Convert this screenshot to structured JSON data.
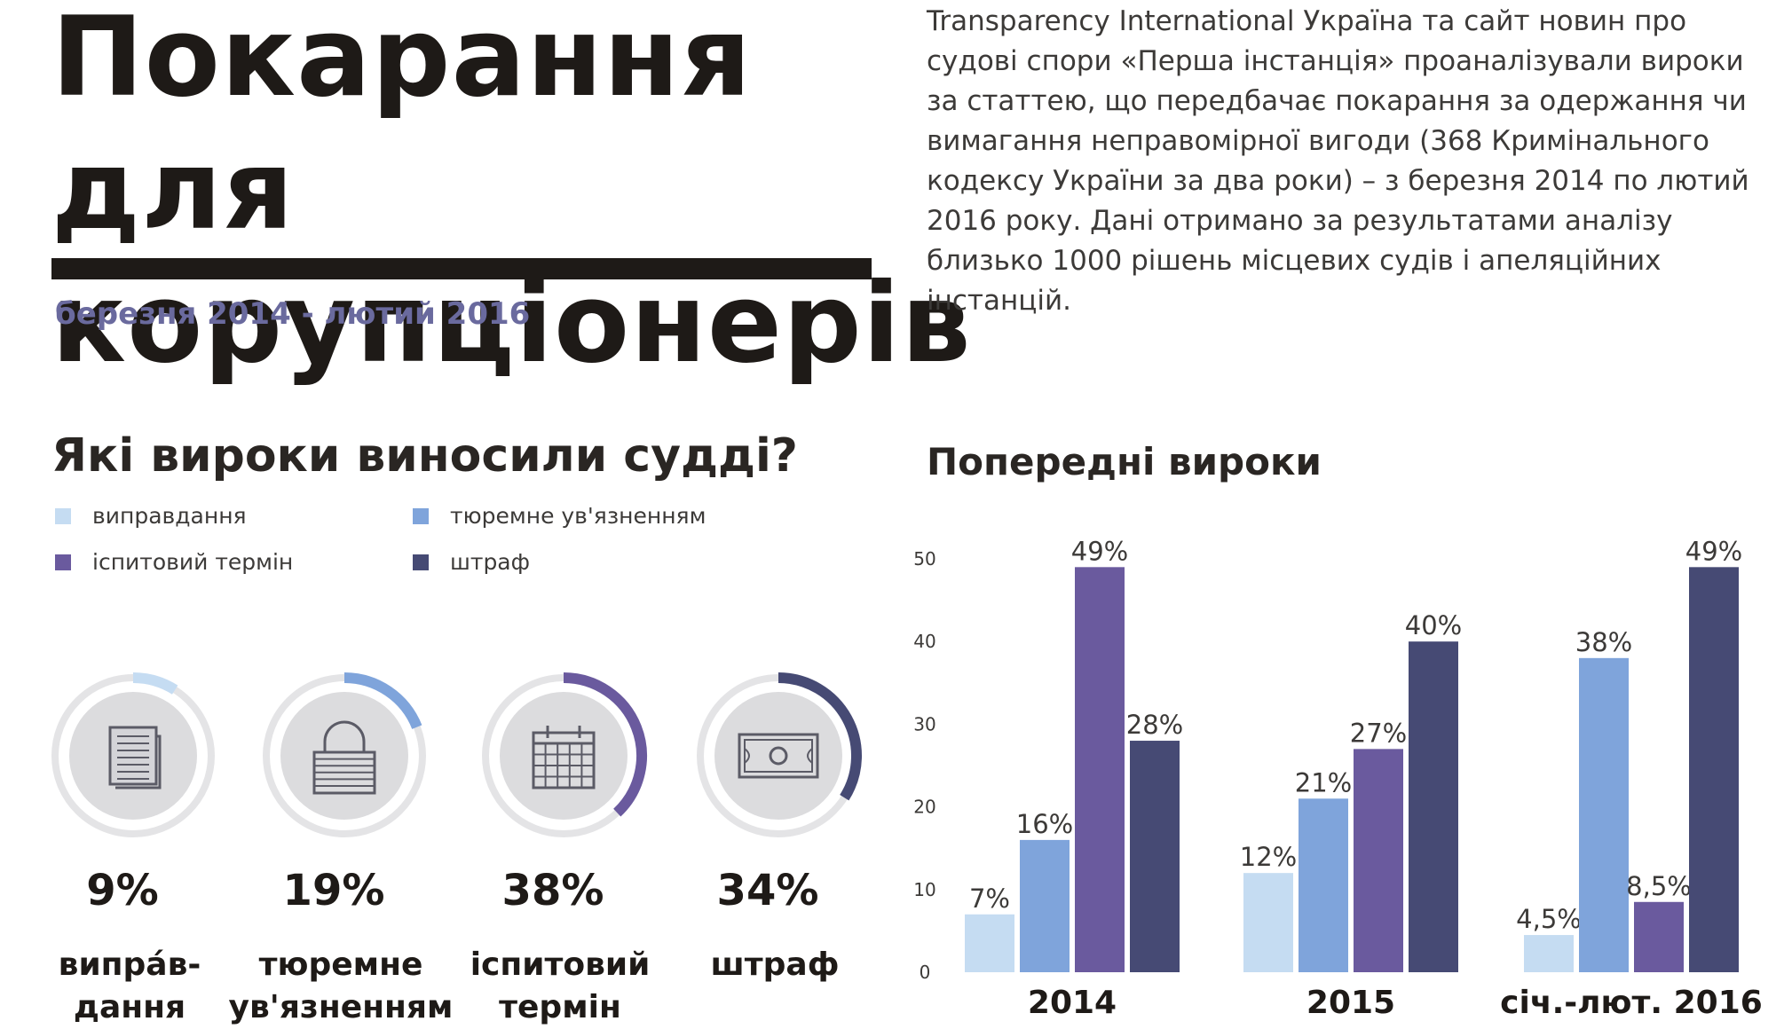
{
  "header": {
    "title": "Покарання для корупціонерів",
    "period": "березня  2014 - лютий 2016",
    "intro": "Transparency International Україна та сайт новин про\nсудові спори «Перша інстанція» проаналізували вироки\nза статтею, що передбачає покарання за одержання чи\nвимагання неправомірної вигоди (368 Кримінального\nкодексу України за два роки) – з березня 2014 по лютий\n2016 року. Дані отримано за результатами аналізу\nблизько 1000 рішень місцевих судів і апеляційних\nінстанцій."
  },
  "left_section": {
    "heading": "Які вироки виносили судді?",
    "legend": [
      {
        "label": "виправдання",
        "color": "#c5dcf2"
      },
      {
        "label": "тюремне ув'язненням",
        "color": "#7fa4db"
      },
      {
        "label": "іспитовий термін",
        "color": "#6a5a9e"
      },
      {
        "label": "штраф",
        "color": "#464a74"
      }
    ]
  },
  "right_section": {
    "heading": "Попередні вироки"
  },
  "chart_data": [
    {
      "type": "pie",
      "title": "Які вироки виносили судді?",
      "categories": [
        "виправдання",
        "тюремне ув'язненням",
        "іспитовий термін",
        "штраф"
      ],
      "values": [
        9,
        19,
        38,
        34
      ],
      "value_labels": [
        "9%",
        "19%",
        "38%",
        "34%"
      ],
      "ring_labels": [
        "випрáв-\nдання",
        "тюремне\nув'язненням",
        "іспитовий\nтермін",
        "штраф"
      ],
      "icons": [
        "document-icon",
        "lock-icon",
        "calendar-icon",
        "banknote-icon"
      ],
      "colors": [
        "#c5dcf2",
        "#7fa4db",
        "#6a5a9e",
        "#464a74"
      ],
      "track_color": "#e4e4e6",
      "inner_color": "#dcdcde"
    },
    {
      "type": "bar",
      "title": "Попередні вироки",
      "categories": [
        "2014",
        "2015",
        "січ.-лют. 2016"
      ],
      "series": [
        {
          "name": "виправдання",
          "color": "#c5dcf2",
          "values": [
            7,
            12,
            4.5
          ],
          "labels": [
            "7%",
            "12%",
            "4,5%"
          ]
        },
        {
          "name": "тюремне ув'язненням",
          "color": "#7fa4db",
          "values": [
            16,
            21,
            38
          ],
          "labels": [
            "16%",
            "21%",
            "38%"
          ]
        },
        {
          "name": "іспитовий термін",
          "color": "#6a5a9e",
          "values": [
            49,
            27,
            8.5
          ],
          "labels": [
            "49%",
            "27%",
            "8,5%"
          ]
        },
        {
          "name": "штраф",
          "color": "#464a74",
          "values": [
            28,
            40,
            49
          ],
          "labels": [
            "28%",
            "40%",
            "49%"
          ]
        }
      ],
      "ylim": [
        0,
        50
      ],
      "yticks": [
        0,
        10,
        20,
        30,
        40,
        50
      ],
      "grid": false
    }
  ]
}
